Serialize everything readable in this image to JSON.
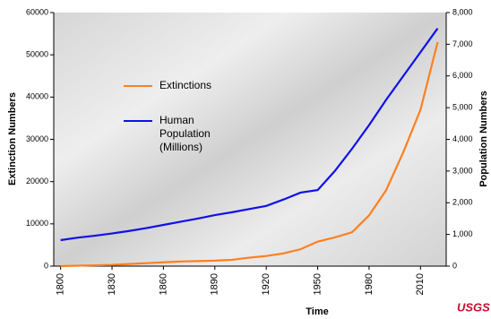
{
  "chart_data": {
    "type": "line",
    "x_label": "Time",
    "y_label": "Extinction Numbers",
    "y2_label": "Population Numbers",
    "logo": "USGS",
    "x": [
      1800,
      1810,
      1820,
      1830,
      1840,
      1850,
      1860,
      1870,
      1880,
      1890,
      1900,
      1910,
      1920,
      1930,
      1940,
      1950,
      1960,
      1970,
      1980,
      1990,
      2000,
      2010,
      2020
    ],
    "series": [
      {
        "name": "Extinctions",
        "color": "#ff7f1e",
        "values": [
          0,
          100,
          200,
          300,
          500,
          700,
          900,
          1100,
          1200,
          1300,
          1500,
          2000,
          2400,
          3000,
          4000,
          5800,
          6800,
          8000,
          12000,
          18000,
          27000,
          37000,
          53000
        ]
      },
      {
        "name": "Human Population (Millions)",
        "color": "#1010e8",
        "axis": "y2",
        "values": [
          820,
          900,
          960,
          1030,
          1110,
          1200,
          1300,
          1400,
          1500,
          1610,
          1700,
          1800,
          1900,
          2100,
          2320,
          2400,
          3000,
          3700,
          4450,
          5250,
          6000,
          6750,
          7500
        ]
      }
    ],
    "xlim": [
      1796,
      2025
    ],
    "xticks": [
      1800,
      1830,
      1860,
      1890,
      1920,
      1950,
      1980,
      2010
    ],
    "ylim": [
      0,
      60000
    ],
    "yticks": [
      0,
      10000,
      20000,
      30000,
      40000,
      50000,
      60000
    ],
    "y2lim": [
      0,
      8000
    ],
    "y2ticks": [
      0,
      {
        "value": 1000,
        "label": "1,000"
      },
      {
        "value": 2000,
        "label": "2,000"
      },
      {
        "value": 3000,
        "label": "3,000"
      },
      {
        "value": 4000,
        "label": "4,000"
      },
      {
        "value": 5000,
        "label": "5,000"
      },
      {
        "value": 6000,
        "label": "6,000"
      },
      {
        "value": 7000,
        "label": "7,000"
      },
      {
        "value": 8000,
        "label": "8,000"
      }
    ]
  }
}
